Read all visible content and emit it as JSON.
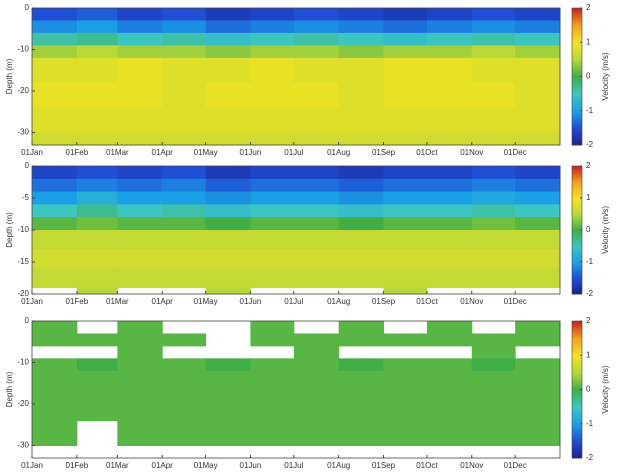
{
  "chart_data": [
    {
      "type": "heatmap",
      "ylabel": "Depth (m)",
      "colorbar_label": "Velocity (m/s)",
      "xlim": [
        0,
        365
      ],
      "xticks": [
        {
          "value": 0,
          "label": "01Jan"
        },
        {
          "value": 31,
          "label": "01Feb"
        },
        {
          "value": 59,
          "label": "01Mar"
        },
        {
          "value": 90,
          "label": "01Apr"
        },
        {
          "value": 120,
          "label": "01May"
        },
        {
          "value": 151,
          "label": "01Jun"
        },
        {
          "value": 181,
          "label": "01Jul"
        },
        {
          "value": 212,
          "label": "01Aug"
        },
        {
          "value": 243,
          "label": "01Sep"
        },
        {
          "value": 273,
          "label": "01Oct"
        },
        {
          "value": 304,
          "label": "01Nov"
        },
        {
          "value": 334,
          "label": "01Dec"
        }
      ],
      "ylim": [
        -33,
        0
      ],
      "yticks": [
        0,
        -10,
        -20,
        -30
      ],
      "clim": [
        -2,
        2
      ],
      "cticks": [
        2,
        1,
        0,
        -1,
        -2
      ],
      "colormap": [
        "#1b1f8a",
        "#1f4fd6",
        "#1aa0e6",
        "#3cc6c0",
        "#3fae46",
        "#b8d83a",
        "#f5e31e",
        "#f2a41e",
        "#c8221e"
      ],
      "time_bins": [
        0,
        31,
        59,
        90,
        120,
        151,
        181,
        212,
        243,
        273,
        304,
        334,
        365
      ],
      "depth_bins": [
        0,
        -3,
        -6,
        -9,
        -12,
        -18,
        -24,
        -30,
        -33
      ],
      "z": [
        [
          -1.5,
          -1.4,
          -1.6,
          -1.5,
          -1.7,
          -1.6,
          -1.5,
          -1.6,
          -1.7,
          -1.6,
          -1.5,
          -1.6
        ],
        [
          -1.1,
          -1.0,
          -1.2,
          -1.1,
          -1.3,
          -1.2,
          -1.1,
          -1.2,
          -1.3,
          -1.2,
          -1.1,
          -1.2
        ],
        [
          -0.4,
          -0.3,
          -0.5,
          -0.4,
          -0.6,
          -0.5,
          -0.4,
          -0.5,
          -0.6,
          -0.5,
          -0.4,
          -0.5
        ],
        [
          0.4,
          0.5,
          0.4,
          0.4,
          0.3,
          0.4,
          0.4,
          0.3,
          0.4,
          0.4,
          0.5,
          0.4
        ],
        [
          0.8,
          0.8,
          0.9,
          0.8,
          0.8,
          0.9,
          0.8,
          0.8,
          0.9,
          0.9,
          0.8,
          0.8
        ],
        [
          0.9,
          0.9,
          0.9,
          0.8,
          0.9,
          0.9,
          0.9,
          0.8,
          0.9,
          0.9,
          0.9,
          0.8
        ],
        [
          0.8,
          0.8,
          0.8,
          0.8,
          0.8,
          0.8,
          0.8,
          0.8,
          0.8,
          0.8,
          0.8,
          0.8
        ],
        [
          0.7,
          0.7,
          0.7,
          0.7,
          0.7,
          0.7,
          0.7,
          0.7,
          0.7,
          0.7,
          0.7,
          0.7
        ]
      ]
    },
    {
      "type": "heatmap",
      "ylabel": "Depth (m)",
      "colorbar_label": "Velocity (m/s)",
      "xlim": [
        0,
        365
      ],
      "xticks": [
        {
          "value": 0,
          "label": "01Jan"
        },
        {
          "value": 31,
          "label": "01Feb"
        },
        {
          "value": 59,
          "label": "01Mar"
        },
        {
          "value": 90,
          "label": "01Apr"
        },
        {
          "value": 120,
          "label": "01May"
        },
        {
          "value": 151,
          "label": "01Jun"
        },
        {
          "value": 181,
          "label": "01Jul"
        },
        {
          "value": 212,
          "label": "01Aug"
        },
        {
          "value": 243,
          "label": "01Sep"
        },
        {
          "value": 273,
          "label": "01Oct"
        },
        {
          "value": 304,
          "label": "01Nov"
        },
        {
          "value": 334,
          "label": "01Dec"
        }
      ],
      "ylim": [
        -20,
        0
      ],
      "yticks": [
        0,
        -5,
        -10,
        -15,
        -20
      ],
      "clim": [
        -2,
        2
      ],
      "cticks": [
        2,
        1,
        0,
        -1,
        -2
      ],
      "colormap": [
        "#1b1f8a",
        "#1f4fd6",
        "#1aa0e6",
        "#3cc6c0",
        "#3fae46",
        "#b8d83a",
        "#f5e31e",
        "#f2a41e",
        "#c8221e"
      ],
      "time_bins": [
        0,
        31,
        59,
        90,
        120,
        151,
        181,
        212,
        243,
        273,
        304,
        334,
        365
      ],
      "depth_bins": [
        0,
        -2,
        -4,
        -6,
        -8,
        -10,
        -13,
        -16,
        -19,
        -20
      ],
      "z": [
        [
          -1.6,
          -1.5,
          -1.6,
          -1.5,
          -1.7,
          -1.6,
          -1.6,
          -1.7,
          -1.6,
          -1.6,
          -1.5,
          -1.6
        ],
        [
          -1.3,
          -1.2,
          -1.3,
          -1.2,
          -1.4,
          -1.3,
          -1.3,
          -1.4,
          -1.3,
          -1.3,
          -1.2,
          -1.3
        ],
        [
          -1.0,
          -0.8,
          -1.0,
          -1.0,
          -1.1,
          -1.0,
          -1.0,
          -1.1,
          -1.0,
          -1.0,
          -0.9,
          -1.0
        ],
        [
          -0.5,
          -0.3,
          -0.5,
          -0.4,
          -0.6,
          -0.5,
          -0.5,
          -0.6,
          -0.5,
          -0.5,
          -0.4,
          -0.5
        ],
        [
          0.1,
          0.2,
          0.1,
          0.1,
          0.0,
          0.1,
          0.1,
          0.0,
          0.1,
          0.1,
          0.2,
          0.1
        ],
        [
          0.6,
          0.6,
          0.6,
          0.6,
          0.6,
          0.6,
          0.6,
          0.6,
          0.6,
          0.6,
          0.6,
          0.6
        ],
        [
          0.7,
          0.7,
          0.7,
          0.7,
          0.7,
          0.7,
          0.7,
          0.7,
          0.7,
          0.7,
          0.7,
          0.7
        ],
        [
          0.6,
          0.6,
          0.6,
          0.6,
          0.6,
          0.6,
          0.6,
          0.6,
          0.6,
          0.6,
          0.6,
          0.6
        ],
        [
          null,
          0.5,
          null,
          null,
          0.5,
          null,
          null,
          null,
          0.5,
          null,
          null,
          null
        ]
      ]
    },
    {
      "type": "heatmap",
      "ylabel": "Depth (m)",
      "colorbar_label": "Velocity (m/s)",
      "xlim": [
        0,
        365
      ],
      "xticks": [
        {
          "value": 0,
          "label": "01Jan"
        },
        {
          "value": 31,
          "label": "01Feb"
        },
        {
          "value": 59,
          "label": "01Mar"
        },
        {
          "value": 90,
          "label": "01Apr"
        },
        {
          "value": 120,
          "label": "01May"
        },
        {
          "value": 151,
          "label": "01Jun"
        },
        {
          "value": 181,
          "label": "01Jul"
        },
        {
          "value": 212,
          "label": "01Aug"
        },
        {
          "value": 243,
          "label": "01Sep"
        },
        {
          "value": 273,
          "label": "01Oct"
        },
        {
          "value": 304,
          "label": "01Nov"
        },
        {
          "value": 334,
          "label": "01Dec"
        }
      ],
      "ylim": [
        -33,
        0
      ],
      "yticks": [
        0,
        -10,
        -20,
        -30
      ],
      "clim": [
        -2,
        2
      ],
      "cticks": [
        2,
        1,
        0,
        -1,
        -2
      ],
      "colormap": [
        "#1b1f8a",
        "#1f4fd6",
        "#1aa0e6",
        "#3cc6c0",
        "#3fae46",
        "#b8d83a",
        "#f5e31e",
        "#f2a41e",
        "#c8221e"
      ],
      "time_bins": [
        0,
        31,
        59,
        90,
        120,
        151,
        181,
        212,
        243,
        273,
        304,
        334,
        365
      ],
      "depth_bins": [
        0,
        -3,
        -6,
        -9,
        -12,
        -18,
        -24,
        -30,
        -33
      ],
      "z": [
        [
          0.1,
          null,
          0.1,
          null,
          null,
          0.1,
          null,
          0.1,
          null,
          0.1,
          null,
          0.1
        ],
        [
          0.1,
          0.1,
          0.1,
          0.1,
          null,
          0.1,
          0.1,
          0.1,
          0.1,
          0.1,
          0.1,
          0.1
        ],
        [
          null,
          null,
          0.1,
          null,
          null,
          null,
          0.1,
          null,
          null,
          null,
          0.1,
          null
        ],
        [
          0.1,
          0.0,
          0.1,
          0.1,
          0.0,
          0.1,
          0.1,
          0.0,
          0.1,
          0.1,
          0.0,
          0.1
        ],
        [
          0.1,
          0.1,
          0.1,
          0.1,
          0.1,
          0.1,
          0.1,
          0.1,
          0.1,
          0.1,
          0.1,
          0.1
        ],
        [
          0.1,
          0.1,
          0.1,
          0.1,
          0.1,
          0.1,
          0.1,
          0.1,
          0.1,
          0.1,
          0.1,
          0.1
        ],
        [
          0.1,
          null,
          0.1,
          0.1,
          0.1,
          0.1,
          0.1,
          0.1,
          0.1,
          0.1,
          0.1,
          0.1
        ],
        [
          null,
          null,
          null,
          null,
          null,
          null,
          null,
          null,
          null,
          null,
          null,
          null
        ]
      ]
    }
  ]
}
